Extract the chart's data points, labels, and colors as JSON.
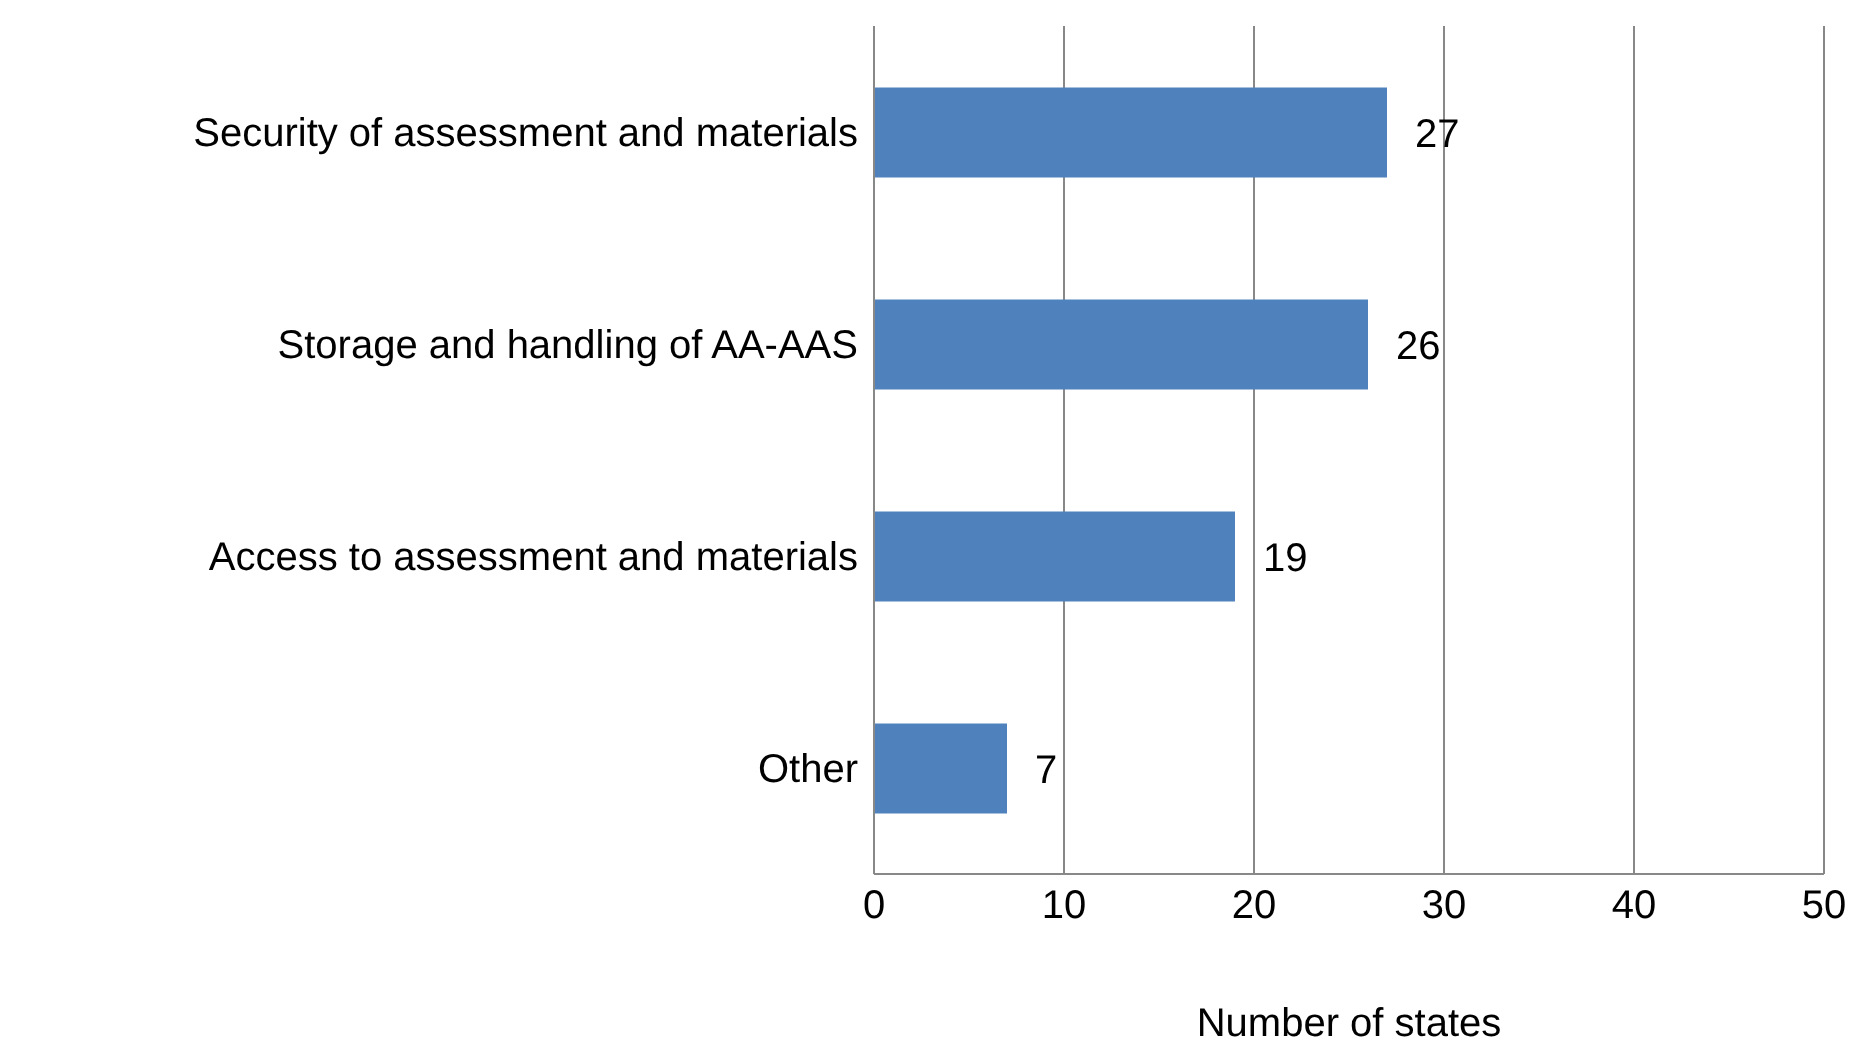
{
  "chart_data": {
    "type": "bar",
    "orientation": "horizontal",
    "categories": [
      "Security of assessment and materials",
      "Storage and handling of AA-AAS",
      "Access to assessment and materials",
      "Other"
    ],
    "values": [
      27,
      26,
      19,
      7
    ],
    "color": "#4f81bd",
    "xlim": [
      0,
      50
    ],
    "xticks": [
      0,
      10,
      20,
      30,
      40,
      50
    ],
    "xlabel": "Number of states",
    "grid": "x",
    "data_labels": true
  }
}
